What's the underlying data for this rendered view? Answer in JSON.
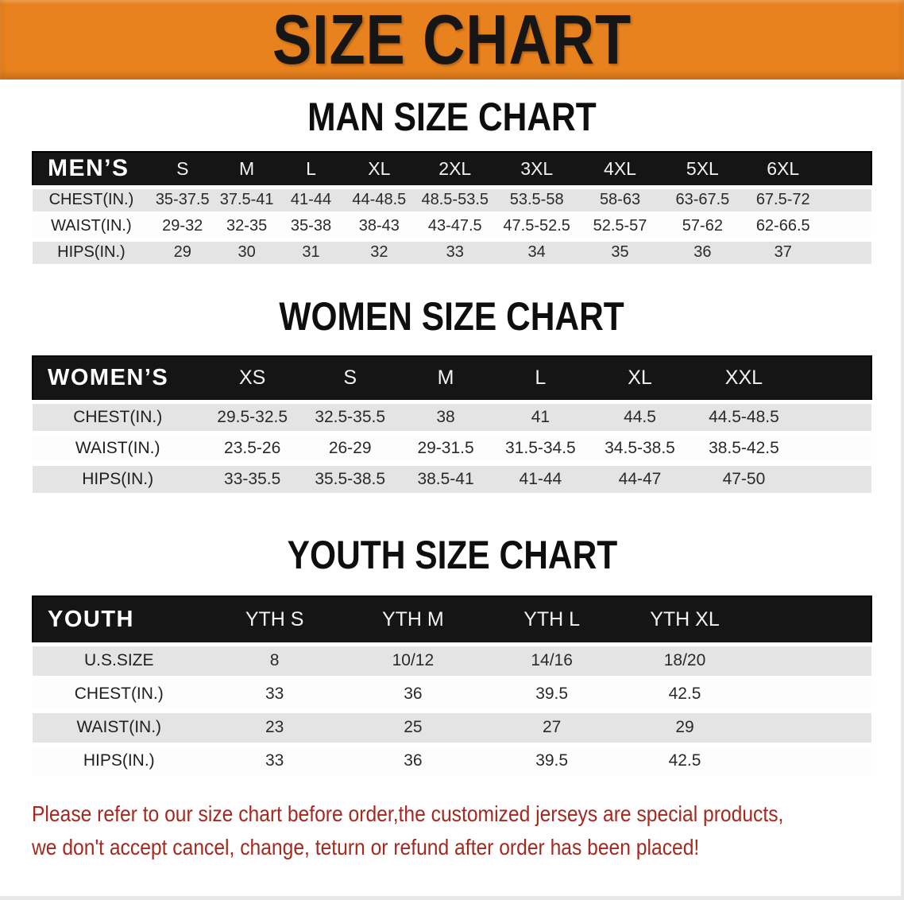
{
  "banner": {
    "title": "SIZE CHART",
    "bg_color": "#E8821E",
    "text_color": "#161616"
  },
  "sections": {
    "men": {
      "title": "MAN SIZE CHART",
      "header_label": "MEN’S",
      "sizes": [
        "S",
        "M",
        "L",
        "XL",
        "2XL",
        "3XL",
        "4XL",
        "5XL",
        "6XL"
      ],
      "rows": [
        {
          "label": "CHEST(IN.)",
          "values": [
            "35-37.5",
            "37.5-41",
            "41-44",
            "44-48.5",
            "48.5-53.5",
            "53.5-58",
            "58-63",
            "63-67.5",
            "67.5-72"
          ]
        },
        {
          "label": "WAIST(IN.)",
          "values": [
            "29-32",
            "32-35",
            "35-38",
            "38-43",
            "43-47.5",
            "47.5-52.5",
            "52.5-57",
            "57-62",
            "62-66.5"
          ]
        },
        {
          "label": "HIPS(IN.)",
          "values": [
            "29",
            "30",
            "31",
            "32",
            "33",
            "34",
            "35",
            "36",
            "37"
          ]
        }
      ]
    },
    "women": {
      "title": "WOMEN SIZE CHART",
      "header_label": "WOMEN’S",
      "sizes": [
        "XS",
        "S",
        "M",
        "L",
        "XL",
        "XXL"
      ],
      "rows": [
        {
          "label": "CHEST(IN.)",
          "values": [
            "29.5-32.5",
            "32.5-35.5",
            "38",
            "41",
            "44.5",
            "44.5-48.5"
          ]
        },
        {
          "label": "WAIST(IN.)",
          "values": [
            "23.5-26",
            "26-29",
            "29-31.5",
            "31.5-34.5",
            "34.5-38.5",
            "38.5-42.5"
          ]
        },
        {
          "label": "HIPS(IN.)",
          "values": [
            "33-35.5",
            "35.5-38.5",
            "38.5-41",
            "41-44",
            "44-47",
            "47-50"
          ]
        }
      ]
    },
    "youth": {
      "title": "YOUTH SIZE CHART",
      "header_label": "YOUTH",
      "sizes": [
        "YTH S",
        "YTH M",
        "YTH L",
        "YTH XL"
      ],
      "rows": [
        {
          "label": "U.S.SIZE",
          "values": [
            "8",
            "10/12",
            "14/16",
            "18/20"
          ]
        },
        {
          "label": "CHEST(IN.)",
          "values": [
            "33",
            "36",
            "39.5",
            "42.5"
          ]
        },
        {
          "label": "WAIST(IN.)",
          "values": [
            "23",
            "25",
            "27",
            "29"
          ]
        },
        {
          "label": "HIPS(IN.)",
          "values": [
            "33",
            "36",
            "39.5",
            "42.5"
          ]
        }
      ]
    }
  },
  "disclaimer": {
    "line1": "Please refer to our size chart before order,the customized jerseys are special products,",
    "line2": "we don't accept cancel, change, teturn or refund after order has been placed!",
    "color": "#A6281E"
  }
}
